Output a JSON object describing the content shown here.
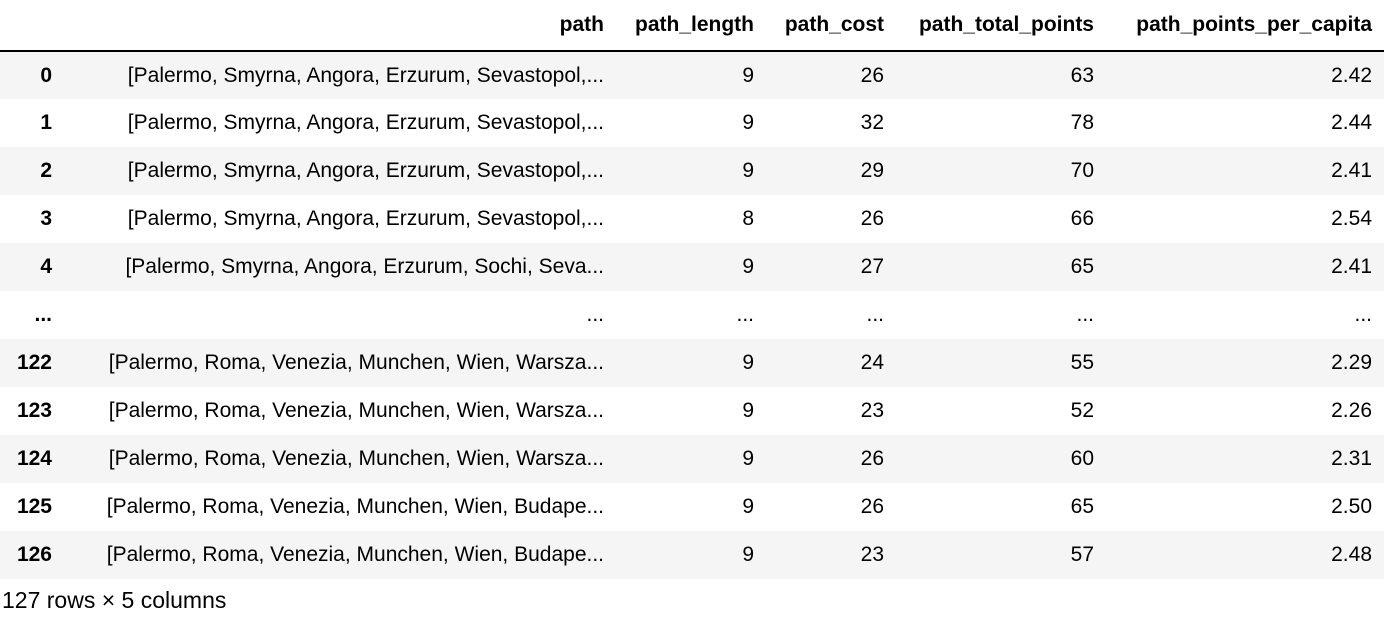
{
  "dataframe": {
    "index_header": "",
    "columns": [
      "path",
      "path_length",
      "path_cost",
      "path_total_points",
      "path_points_per_capita"
    ],
    "rows": [
      {
        "index": "0",
        "values": [
          "[Palermo, Smyrna, Angora, Erzurum, Sevastopol,...",
          "9",
          "26",
          "63",
          "2.42"
        ]
      },
      {
        "index": "1",
        "values": [
          "[Palermo, Smyrna, Angora, Erzurum, Sevastopol,...",
          "9",
          "32",
          "78",
          "2.44"
        ]
      },
      {
        "index": "2",
        "values": [
          "[Palermo, Smyrna, Angora, Erzurum, Sevastopol,...",
          "9",
          "29",
          "70",
          "2.41"
        ]
      },
      {
        "index": "3",
        "values": [
          "[Palermo, Smyrna, Angora, Erzurum, Sevastopol,...",
          "8",
          "26",
          "66",
          "2.54"
        ]
      },
      {
        "index": "4",
        "values": [
          "[Palermo, Smyrna, Angora, Erzurum, Sochi, Seva...",
          "9",
          "27",
          "65",
          "2.41"
        ]
      },
      {
        "index": "...",
        "values": [
          "...",
          "...",
          "...",
          "...",
          "..."
        ]
      },
      {
        "index": "122",
        "values": [
          "[Palermo, Roma, Venezia, Munchen, Wien, Warsza...",
          "9",
          "24",
          "55",
          "2.29"
        ]
      },
      {
        "index": "123",
        "values": [
          "[Palermo, Roma, Venezia, Munchen, Wien, Warsza...",
          "9",
          "23",
          "52",
          "2.26"
        ]
      },
      {
        "index": "124",
        "values": [
          "[Palermo, Roma, Venezia, Munchen, Wien, Warsza...",
          "9",
          "26",
          "60",
          "2.31"
        ]
      },
      {
        "index": "125",
        "values": [
          "[Palermo, Roma, Venezia, Munchen, Wien, Budape...",
          "9",
          "26",
          "65",
          "2.50"
        ]
      },
      {
        "index": "126",
        "values": [
          "[Palermo, Roma, Venezia, Munchen, Wien, Budape...",
          "9",
          "23",
          "57",
          "2.48"
        ]
      }
    ],
    "shape_text": "127 rows × 5 columns"
  },
  "colors": {
    "stripe": "#f5f5f5",
    "header_rule": "#000000",
    "text": "#000000"
  }
}
